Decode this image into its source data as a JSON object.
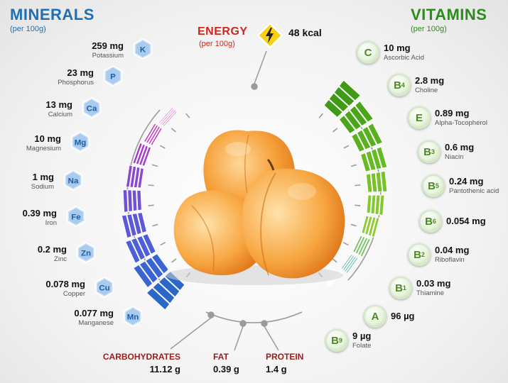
{
  "minerals": {
    "title": "MINERALS",
    "per": "(per 100g)",
    "items": [
      {
        "value": "259 mg",
        "name": "Potassium",
        "symbol": "K"
      },
      {
        "value": "23 mg",
        "name": "Phosphorus",
        "symbol": "P"
      },
      {
        "value": "13 mg",
        "name": "Calcium",
        "symbol": "Ca"
      },
      {
        "value": "10 mg",
        "name": "Magnesium",
        "symbol": "Mg"
      },
      {
        "value": "1 mg",
        "name": "Sodium",
        "symbol": "Na"
      },
      {
        "value": "0.39 mg",
        "name": "Iron",
        "symbol": "Fe"
      },
      {
        "value": "0.2 mg",
        "name": "Zinc",
        "symbol": "Zn"
      },
      {
        "value": "0.078 mg",
        "name": "Copper",
        "symbol": "Cu"
      },
      {
        "value": "0.077 mg",
        "name": "Manganese",
        "symbol": "Mn"
      }
    ]
  },
  "vitamins": {
    "title": "VITAMINS",
    "per": "(per 100g)",
    "items": [
      {
        "value": "10 mg",
        "name": "Ascorbic Acid",
        "letter": "C",
        "sub": ""
      },
      {
        "value": "2.8 mg",
        "name": "Choline",
        "letter": "B",
        "sub": "4"
      },
      {
        "value": "0.89 mg",
        "name": "Alpha-Tocopherol",
        "letter": "E",
        "sub": ""
      },
      {
        "value": "0.6 mg",
        "name": "Niacin",
        "letter": "B",
        "sub": "3"
      },
      {
        "value": "0.24 mg",
        "name": "Pantothenic acid",
        "letter": "B",
        "sub": "5"
      },
      {
        "value": "0.054 mg",
        "name": "",
        "letter": "B",
        "sub": "6"
      },
      {
        "value": "0.04 mg",
        "name": "Riboflavin",
        "letter": "B",
        "sub": "2"
      },
      {
        "value": "0.03 mg",
        "name": "Thiamine",
        "letter": "B",
        "sub": "1"
      },
      {
        "value": "96 µg",
        "name": "",
        "letter": "A",
        "sub": ""
      },
      {
        "value": "9 µg",
        "name": "Folate",
        "letter": "B",
        "sub": "9"
      }
    ]
  },
  "energy": {
    "title": "ENERGY",
    "per": "(per 100g)",
    "value": "48 kcal"
  },
  "macros": [
    {
      "name": "CARBOHYDRATES",
      "value": "11.12 g"
    },
    {
      "name": "FAT",
      "value": "0.39 g"
    },
    {
      "name": "PROTEIN",
      "value": "1.4 g"
    }
  ],
  "colors": {
    "minerals_title": "#1f6fb5",
    "vitamins_title": "#2e8b1d",
    "energy": "#d0251b",
    "apricot": "#f6a13a"
  }
}
